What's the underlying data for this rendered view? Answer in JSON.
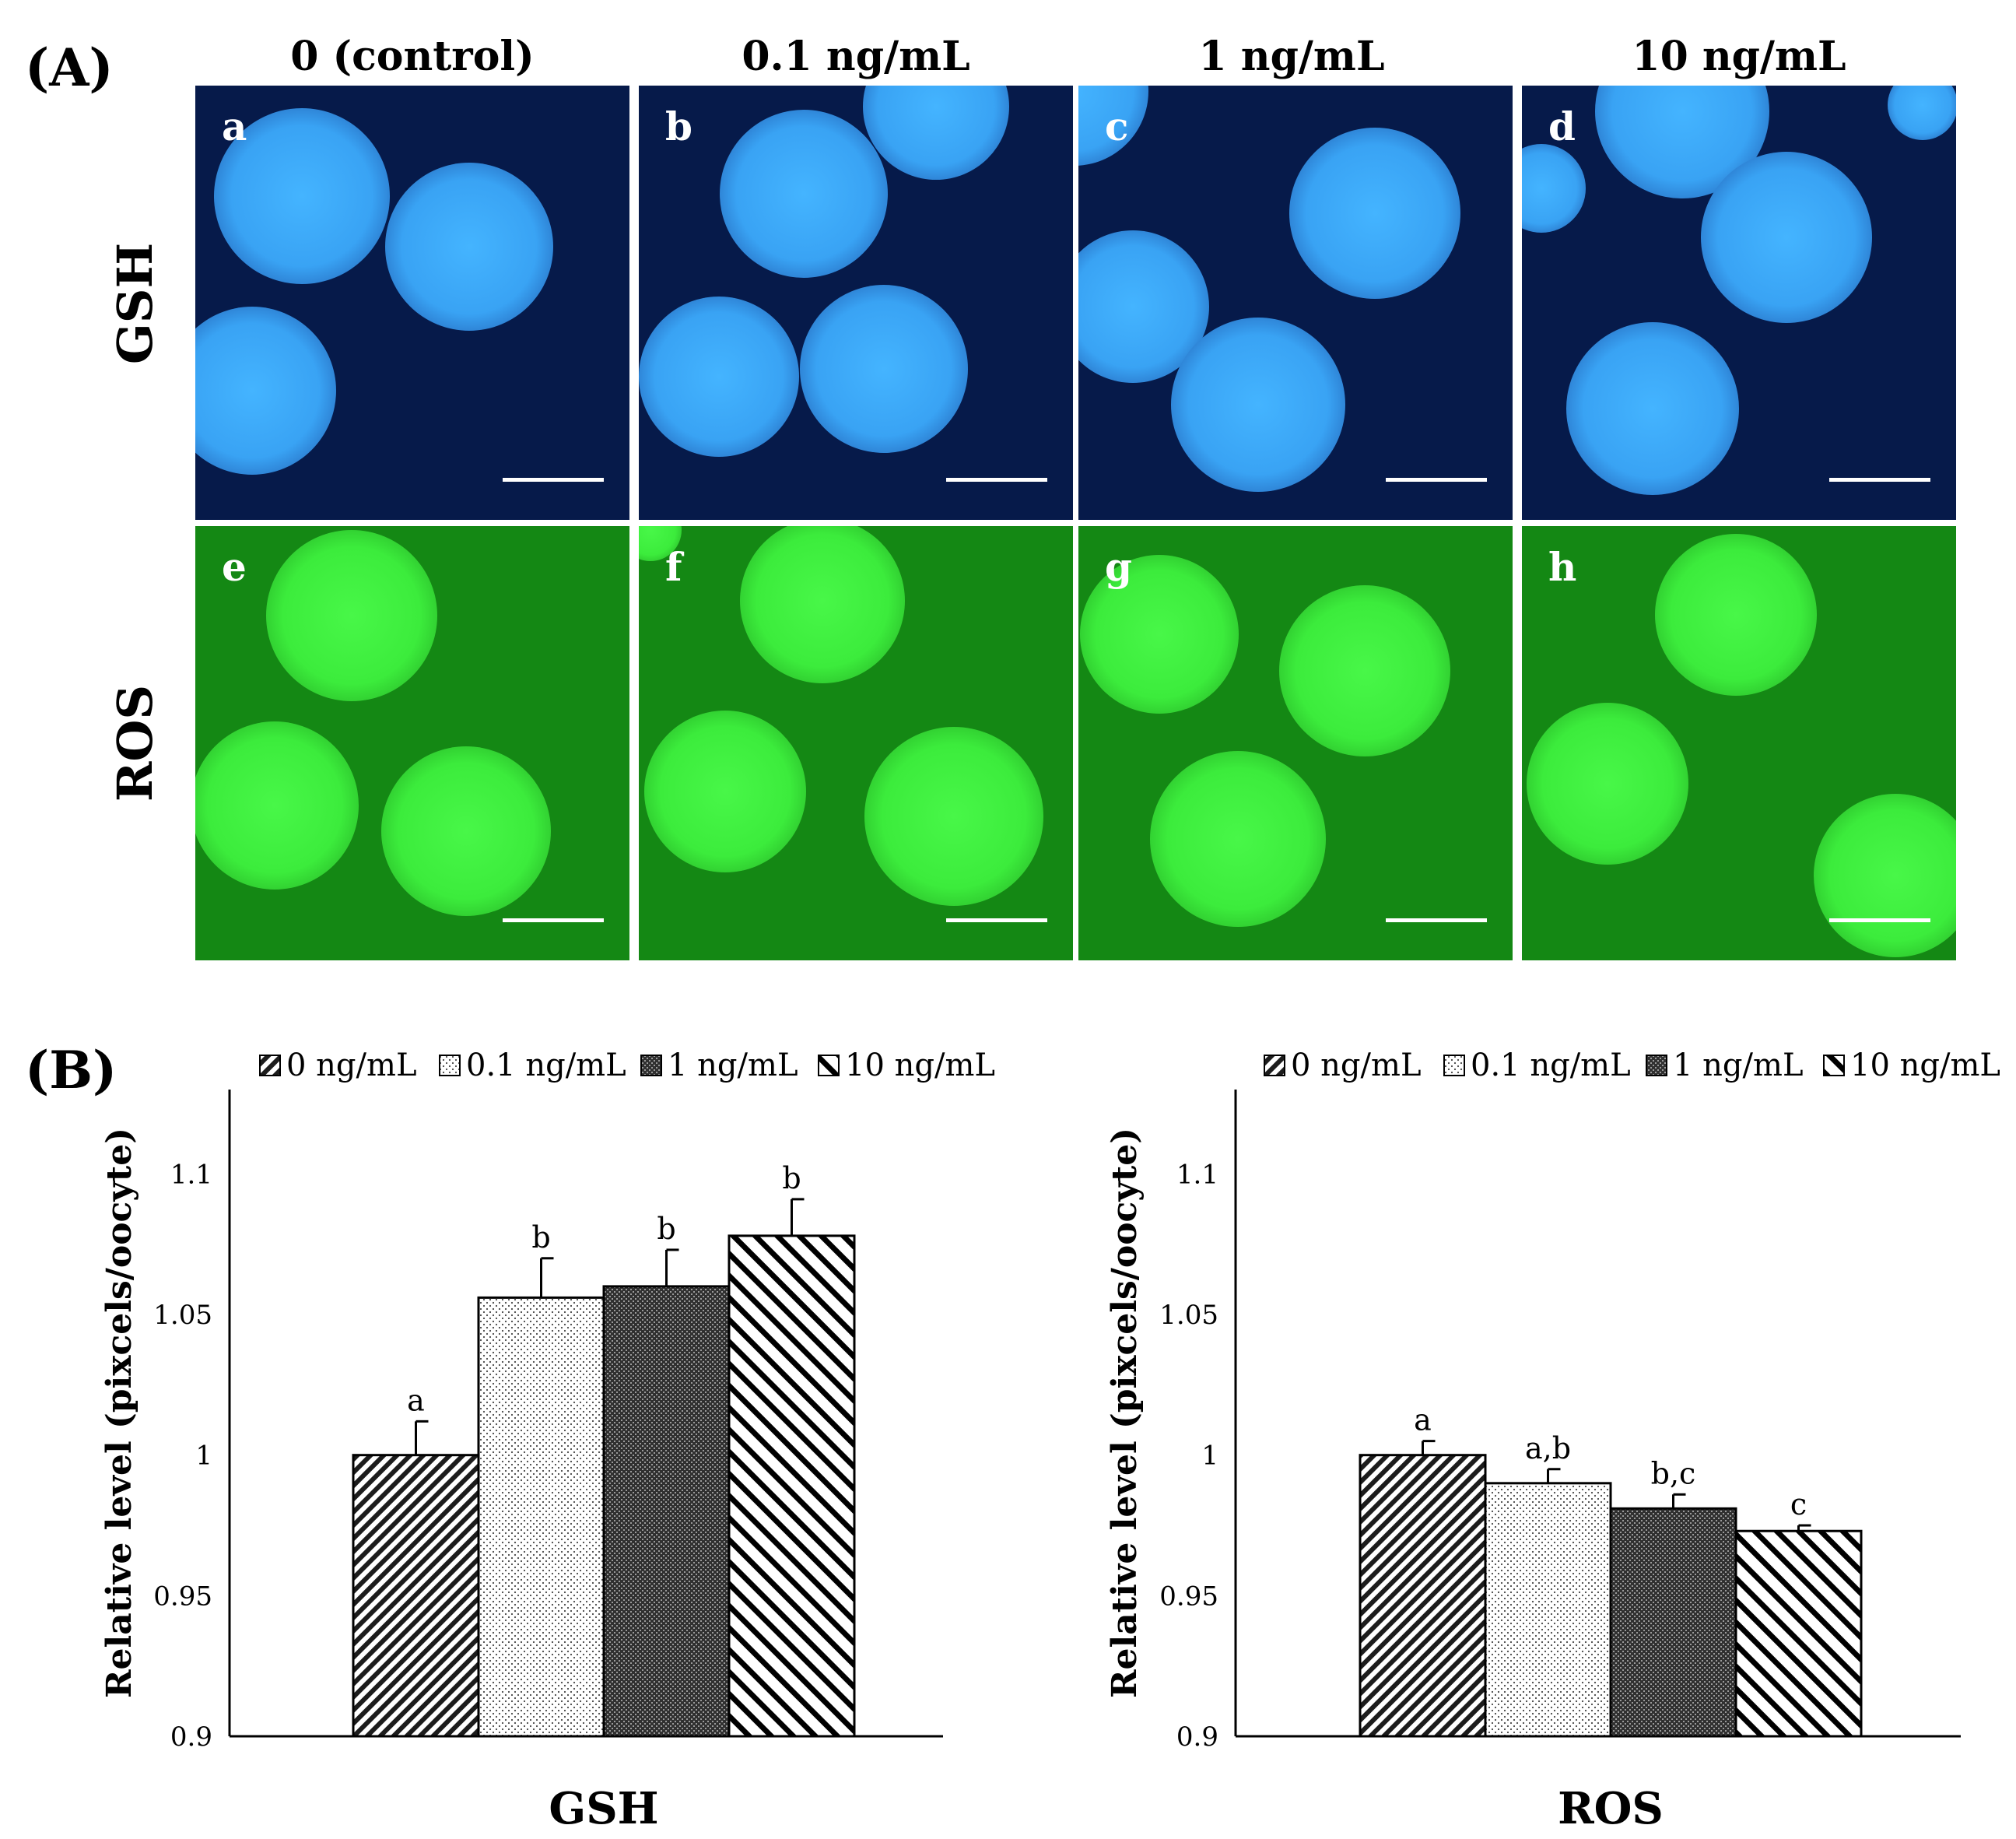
{
  "panel_a": {
    "label": "(A)",
    "columns": [
      "0 (control)",
      "0.1 ng/mL",
      "1 ng/mL",
      "10 ng/mL"
    ],
    "rows": [
      "GSH",
      "ROS"
    ],
    "tile_letters": [
      "a",
      "b",
      "c",
      "d",
      "e",
      "f",
      "g",
      "h"
    ],
    "colors": {
      "gsh_bg": "#061a4a",
      "gsh_cell": "#3aa6f2",
      "ros_bg": "#148814",
      "ros_cell": "#3fef3f"
    }
  },
  "panel_b": {
    "label": "(B)"
  },
  "chart_data": [
    {
      "type": "bar",
      "title": "",
      "xlabel": "GSH",
      "ylabel": "Relative level (pixcels/oocyte)",
      "ylim": [
        0.9,
        1.13
      ],
      "yticks": [
        0.9,
        0.95,
        1,
        1.05,
        1.1
      ],
      "ytick_labels": [
        "0.9",
        "0.95",
        "1",
        "1.05",
        "1.1"
      ],
      "categories": [
        "0 ng/mL",
        "0.1 ng/mL",
        "1 ng/mL",
        "10 ng/mL"
      ],
      "values": [
        1.0,
        1.056,
        1.06,
        1.078
      ],
      "errors": [
        0.012,
        0.014,
        0.013,
        0.013
      ],
      "significance": [
        "a",
        "b",
        "b",
        "b"
      ],
      "legend": [
        "0 ng/mL",
        "0.1 ng/mL",
        "1 ng/mL",
        "10 ng/mL"
      ],
      "legend_position": "top",
      "grid": false
    },
    {
      "type": "bar",
      "title": "",
      "xlabel": "ROS",
      "ylabel": "Relative level (pixcels/oocyte)",
      "ylim": [
        0.9,
        1.13
      ],
      "yticks": [
        0.9,
        0.95,
        1,
        1.05,
        1.1
      ],
      "ytick_labels": [
        "0.9",
        "0.95",
        "1",
        "1.05",
        "1.1"
      ],
      "categories": [
        "0 ng/mL",
        "0.1 ng/mL",
        "1 ng/mL",
        "10 ng/mL"
      ],
      "values": [
        1.0,
        0.99,
        0.981,
        0.973
      ],
      "errors": [
        0.005,
        0.005,
        0.005,
        0.002
      ],
      "significance": [
        "a",
        "a,b",
        "b,c",
        "c"
      ],
      "legend": [
        "0 ng/mL",
        "0.1 ng/mL",
        "1 ng/mL",
        "10 ng/mL"
      ],
      "legend_position": "top",
      "grid": false
    }
  ]
}
